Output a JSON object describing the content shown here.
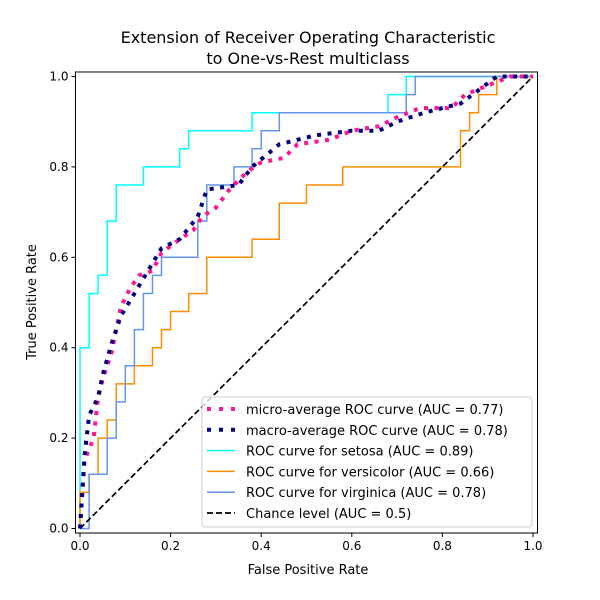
{
  "chart_data": {
    "type": "line",
    "title": [
      "Extension of Receiver Operating Characteristic",
      "to One-vs-Rest multiclass"
    ],
    "xlabel": "False Positive Rate",
    "ylabel": "True Positive Rate",
    "xlim": [
      -0.01,
      1.01
    ],
    "ylim": [
      -0.01,
      1.01
    ],
    "xticks": [
      "0.0",
      "0.2",
      "0.4",
      "0.6",
      "0.8",
      "1.0"
    ],
    "yticks": [
      "0.0",
      "0.2",
      "0.4",
      "0.6",
      "0.8",
      "1.0"
    ],
    "grid": false,
    "legend_placement": "lower-right",
    "series": [
      {
        "name": "micro-average ROC curve (AUC = 0.77)",
        "color": "#ff1493",
        "style": "dotted",
        "x": [
          0,
          0.01,
          0.03,
          0.04,
          0.05,
          0.07,
          0.09,
          0.11,
          0.13,
          0.16,
          0.18,
          0.22,
          0.25,
          0.27,
          0.3,
          0.33,
          0.37,
          0.4,
          0.45,
          0.48,
          0.55,
          0.6,
          0.66,
          0.7,
          0.75,
          0.82,
          0.85,
          0.9,
          0.95,
          1
        ],
        "y": [
          0,
          0.15,
          0.2,
          0.29,
          0.33,
          0.39,
          0.49,
          0.53,
          0.56,
          0.57,
          0.61,
          0.64,
          0.66,
          0.69,
          0.71,
          0.75,
          0.79,
          0.81,
          0.82,
          0.85,
          0.86,
          0.88,
          0.89,
          0.91,
          0.93,
          0.93,
          0.96,
          0.98,
          1.0,
          1.0
        ]
      },
      {
        "name": "macro-average ROC curve (AUC = 0.78)",
        "color": "#000080",
        "style": "dotted",
        "x": [
          0,
          0.01,
          0.02,
          0.04,
          0.05,
          0.07,
          0.09,
          0.12,
          0.15,
          0.18,
          0.22,
          0.26,
          0.28,
          0.35,
          0.38,
          0.44,
          0.52,
          0.6,
          0.66,
          0.7,
          0.76,
          0.8,
          0.84,
          0.88,
          0.92,
          1
        ],
        "y": [
          0,
          0.16,
          0.25,
          0.29,
          0.34,
          0.41,
          0.47,
          0.52,
          0.57,
          0.62,
          0.64,
          0.69,
          0.75,
          0.76,
          0.8,
          0.85,
          0.87,
          0.88,
          0.88,
          0.9,
          0.92,
          0.93,
          0.94,
          0.97,
          1.0,
          1.0
        ]
      },
      {
        "name": "ROC curve for setosa (AUC = 0.89)",
        "color": "#00ffff",
        "style": "solid",
        "x": [
          0,
          0,
          0.02,
          0.02,
          0.04,
          0.04,
          0.06,
          0.06,
          0.08,
          0.08,
          0.14,
          0.14,
          0.22,
          0.22,
          0.24,
          0.24,
          0.38,
          0.38,
          0.68,
          0.68,
          0.72,
          0.72,
          1
        ],
        "y": [
          0,
          0.4,
          0.4,
          0.52,
          0.52,
          0.56,
          0.56,
          0.68,
          0.68,
          0.76,
          0.76,
          0.8,
          0.8,
          0.84,
          0.84,
          0.88,
          0.88,
          0.92,
          0.92,
          0.96,
          0.96,
          1.0,
          1.0
        ]
      },
      {
        "name": "ROC curve for versicolor (AUC = 0.66)",
        "color": "#ff8c00",
        "style": "solid",
        "x": [
          0,
          0,
          0.02,
          0.02,
          0.04,
          0.04,
          0.06,
          0.06,
          0.08,
          0.08,
          0.12,
          0.12,
          0.16,
          0.16,
          0.18,
          0.18,
          0.2,
          0.2,
          0.24,
          0.24,
          0.28,
          0.28,
          0.38,
          0.38,
          0.44,
          0.44,
          0.5,
          0.5,
          0.58,
          0.58,
          0.84,
          0.84,
          0.86,
          0.86,
          0.88,
          0.88,
          0.92,
          0.92,
          1
        ],
        "y": [
          0,
          0.08,
          0.08,
          0.12,
          0.12,
          0.2,
          0.2,
          0.24,
          0.24,
          0.32,
          0.32,
          0.36,
          0.36,
          0.4,
          0.4,
          0.44,
          0.44,
          0.48,
          0.48,
          0.52,
          0.52,
          0.6,
          0.6,
          0.64,
          0.64,
          0.72,
          0.72,
          0.76,
          0.76,
          0.8,
          0.8,
          0.88,
          0.88,
          0.92,
          0.92,
          0.96,
          0.96,
          1.0,
          1.0
        ]
      },
      {
        "name": "ROC curve for virginica (AUC = 0.78)",
        "color": "#6495ed",
        "style": "solid",
        "x": [
          0,
          0.02,
          0.02,
          0.06,
          0.06,
          0.08,
          0.08,
          0.1,
          0.1,
          0.12,
          0.12,
          0.14,
          0.14,
          0.16,
          0.16,
          0.18,
          0.18,
          0.26,
          0.26,
          0.28,
          0.28,
          0.34,
          0.34,
          0.38,
          0.38,
          0.4,
          0.4,
          0.44,
          0.44,
          0.72,
          0.72,
          0.74,
          0.74,
          1
        ],
        "y": [
          0,
          0,
          0.12,
          0.12,
          0.2,
          0.2,
          0.28,
          0.28,
          0.36,
          0.36,
          0.44,
          0.44,
          0.52,
          0.52,
          0.56,
          0.56,
          0.6,
          0.6,
          0.68,
          0.68,
          0.76,
          0.76,
          0.8,
          0.8,
          0.84,
          0.84,
          0.88,
          0.88,
          0.92,
          0.92,
          0.96,
          0.96,
          1.0,
          1.0
        ]
      },
      {
        "name": "Chance level (AUC = 0.5)",
        "color": "#000000",
        "style": "dashed",
        "x": [
          0,
          1
        ],
        "y": [
          0,
          1
        ]
      }
    ]
  }
}
